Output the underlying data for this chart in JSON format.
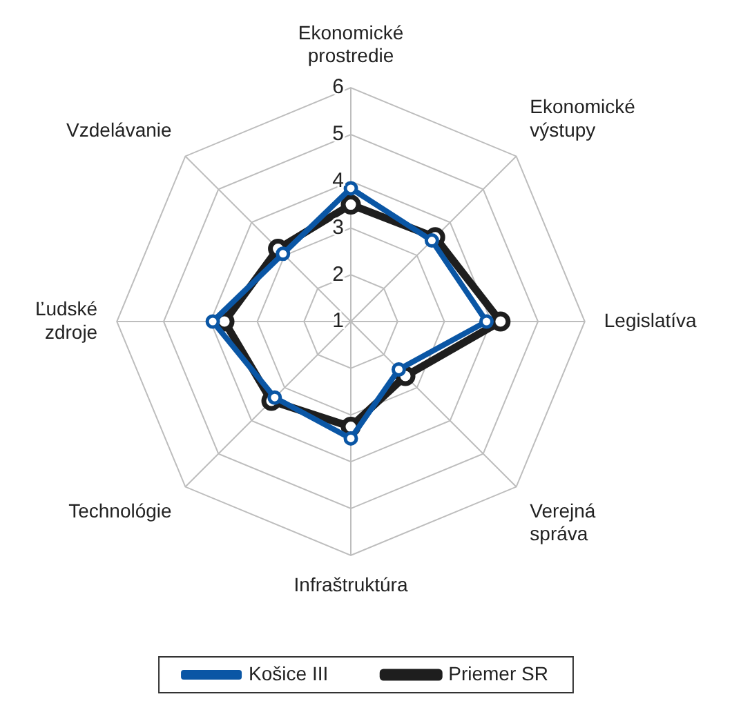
{
  "chart_data": {
    "type": "radar",
    "categories": [
      "Ekonomické prostredie",
      "Ekonomické výstupy",
      "Legislatíva",
      "Verejná správa",
      "Infraštruktúra",
      "Technológie",
      "Ľudské zdroje",
      "Vzdelávanie"
    ],
    "series": [
      {
        "name": "Košice III",
        "color": "#0a56a5",
        "values": [
          3.85,
          3.45,
          3.9,
          2.45,
          3.5,
          3.3,
          3.95,
          3.05
        ]
      },
      {
        "name": "Priemer SR",
        "color": "#1e1e1e",
        "values": [
          3.5,
          3.55,
          4.2,
          2.65,
          3.25,
          3.4,
          3.7,
          3.2
        ]
      }
    ],
    "ylim": [
      1,
      6
    ],
    "yticks": [
      1,
      2,
      3,
      4,
      5,
      6
    ],
    "grid": true,
    "legend": "bottom",
    "marker": "circle",
    "line_style": "solid"
  }
}
